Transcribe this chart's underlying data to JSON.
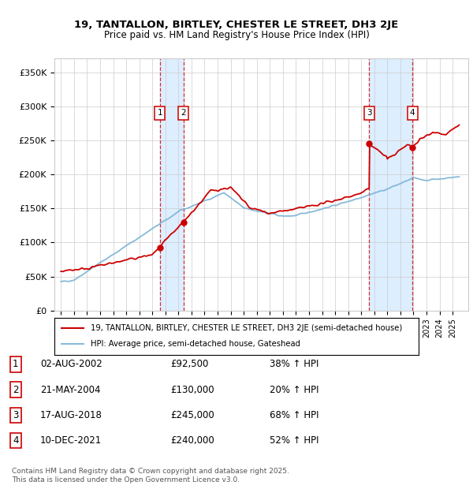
{
  "title": "19, TANTALLON, BIRTLEY, CHESTER LE STREET, DH3 2JE",
  "subtitle": "Price paid vs. HM Land Registry's House Price Index (HPI)",
  "ylim": [
    0,
    370000
  ],
  "transaction_dates": [
    2002.58,
    2004.38,
    2018.62,
    2021.92
  ],
  "transaction_prices": [
    92500,
    130000,
    245000,
    240000
  ],
  "transaction_labels": [
    "1",
    "2",
    "3",
    "4"
  ],
  "vline_pairs": [
    [
      2002.58,
      2004.38
    ],
    [
      2018.62,
      2021.92
    ]
  ],
  "sale_color": "#cc0000",
  "hpi_color": "#7ab3d4",
  "shade_color": "#ddeeff",
  "grid_color": "#cccccc",
  "legend_line1": "19, TANTALLON, BIRTLEY, CHESTER LE STREET, DH3 2JE (semi-detached house)",
  "legend_line2": "HPI: Average price, semi-detached house, Gateshead",
  "table_data": [
    [
      "1",
      "02-AUG-2002",
      "£92,500",
      "38% ↑ HPI"
    ],
    [
      "2",
      "21-MAY-2004",
      "£130,000",
      "20% ↑ HPI"
    ],
    [
      "3",
      "17-AUG-2018",
      "£245,000",
      "68% ↑ HPI"
    ],
    [
      "4",
      "10-DEC-2021",
      "£240,000",
      "52% ↑ HPI"
    ]
  ],
  "footer": "Contains HM Land Registry data © Crown copyright and database right 2025.\nThis data is licensed under the Open Government Licence v3.0.",
  "background_color": "#ffffff"
}
